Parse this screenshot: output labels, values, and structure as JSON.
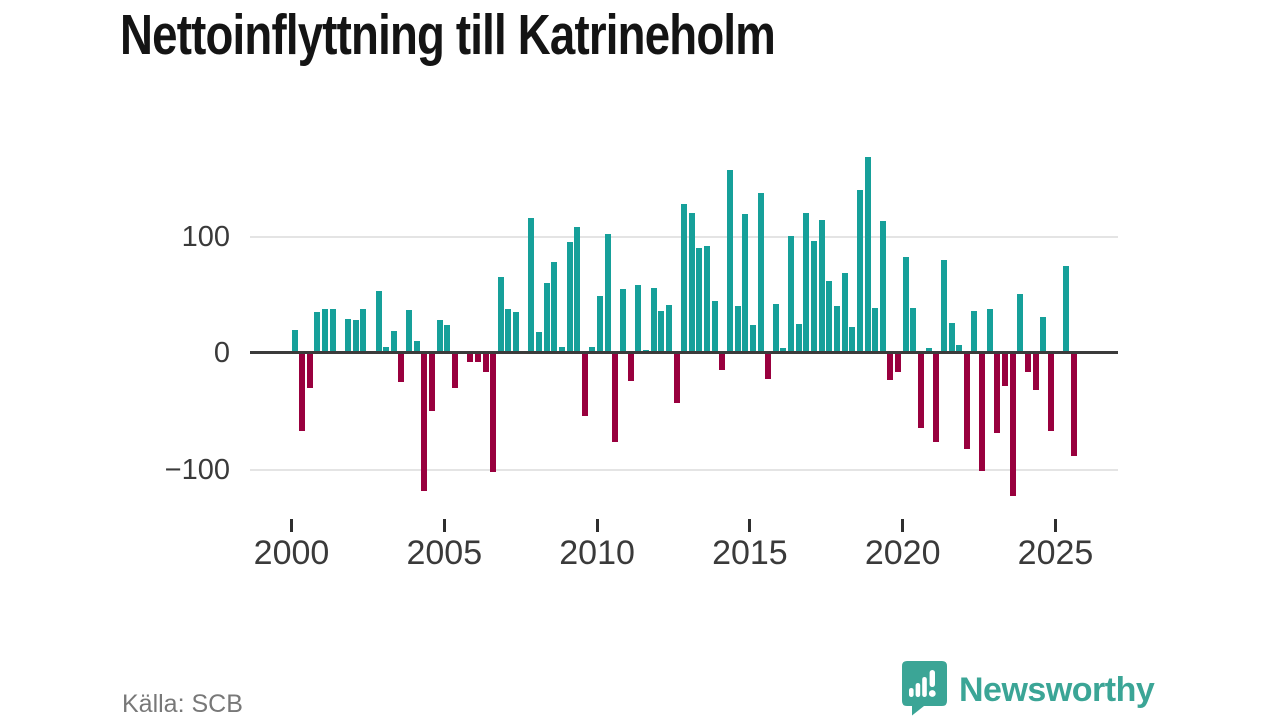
{
  "title": "Nettoinflyttning till Katrineholm",
  "source": "Källa: SCB",
  "branding": {
    "name": "Newsworthy",
    "icon": "newsworthy-speech-bubble-chart-icon"
  },
  "colors": {
    "positive": "#16a09a",
    "negative": "#99003e",
    "brand": "#3ba596",
    "grid": "#e4e4e4",
    "zero_axis": "#3b3b3b",
    "axis_text": "#3a3a3a",
    "title_text": "#141414",
    "source_text": "#787878"
  },
  "chart_data": {
    "type": "bar",
    "title": "Nettoinflyttning till Katrineholm",
    "xlabel": "",
    "ylabel": "",
    "frequency": "quarterly",
    "start_period": "2000-Q1",
    "end_period": "2025-Q3",
    "x_tick_labels": [
      "2000",
      "2005",
      "2010",
      "2015",
      "2020",
      "2025"
    ],
    "y_tick_labels": [
      "100",
      "0",
      "−100"
    ],
    "y_ticks": [
      100,
      0,
      -100
    ],
    "ylim": [
      -130,
      175
    ],
    "grid": "horizontal",
    "legend": "none",
    "series_note": "Net migration per quarter, 2000Q1 to 2025Q3; zero entries render as no visible bar",
    "values": [
      20,
      -67,
      -30,
      35,
      38,
      38,
      0,
      29,
      28,
      38,
      0,
      53,
      5,
      19,
      -25,
      37,
      10,
      -118,
      -50,
      28,
      24,
      -30,
      0,
      -8,
      -8,
      -16,
      -102,
      65,
      38,
      35,
      0,
      116,
      18,
      60,
      78,
      5,
      95,
      108,
      -54,
      5,
      49,
      102,
      -76,
      55,
      -24,
      58,
      3,
      56,
      36,
      41,
      -43,
      128,
      120,
      90,
      92,
      45,
      -15,
      157,
      40,
      119,
      24,
      137,
      -22,
      42,
      4,
      100,
      25,
      120,
      96,
      114,
      62,
      40,
      69,
      22,
      140,
      168,
      39,
      113,
      -23,
      -16,
      82,
      39,
      -64,
      4,
      -76,
      80,
      26,
      7,
      -82,
      36,
      -101,
      38,
      -69,
      -28,
      -123,
      51,
      -16,
      -32,
      31,
      -67,
      0,
      75,
      -88
    ]
  }
}
